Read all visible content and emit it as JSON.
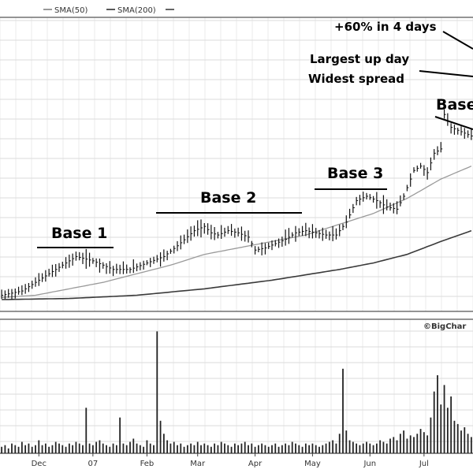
{
  "legend": {
    "items": [
      {
        "label": "SMA(50)",
        "color": "#9a9a9a"
      },
      {
        "label": "SMA(200)",
        "color": "#5a5a5a"
      }
    ]
  },
  "watermark": "©BigChar",
  "colors": {
    "price_bars": "#111111",
    "sma50": "#9a9a9a",
    "sma200": "#3a3a3a",
    "volume_bars": "#222222",
    "grid": "#c8c8c8",
    "annotation": "#000000"
  },
  "chart_data": {
    "type": "line",
    "title": "",
    "x_month_labels": [
      "Dec",
      "07",
      "Feb",
      "Mar",
      "Apr",
      "May",
      "Jun",
      "Jul"
    ],
    "grid": true,
    "price_panel": {
      "ylim": [
        0,
        100
      ],
      "price_path": [
        [
          0,
          2
        ],
        [
          6,
          4
        ],
        [
          10,
          8
        ],
        [
          14,
          12
        ],
        [
          19,
          17
        ],
        [
          22,
          20
        ],
        [
          27,
          18
        ],
        [
          33,
          14
        ],
        [
          38,
          14
        ],
        [
          43,
          17
        ],
        [
          48,
          20
        ],
        [
          52,
          25
        ],
        [
          57,
          32
        ],
        [
          60,
          34
        ],
        [
          62,
          31
        ],
        [
          64,
          30
        ],
        [
          67,
          32
        ],
        [
          70,
          31
        ],
        [
          73,
          29
        ],
        [
          75,
          23
        ],
        [
          78,
          24
        ],
        [
          81,
          26
        ],
        [
          84,
          28
        ],
        [
          87,
          31
        ],
        [
          90,
          32
        ],
        [
          93,
          31
        ],
        [
          96,
          30
        ],
        [
          99,
          30
        ],
        [
          102,
          36
        ],
        [
          105,
          46
        ],
        [
          108,
          48
        ],
        [
          111,
          46
        ],
        [
          114,
          43
        ],
        [
          117,
          42
        ],
        [
          119,
          48
        ],
        [
          122,
          60
        ],
        [
          124,
          62
        ],
        [
          126,
          59
        ],
        [
          128,
          68
        ],
        [
          130,
          70
        ],
        [
          131,
          86
        ],
        [
          133,
          80
        ],
        [
          136,
          78
        ],
        [
          139,
          76
        ]
      ],
      "sma50": [
        [
          0,
          1
        ],
        [
          10,
          2
        ],
        [
          20,
          5
        ],
        [
          30,
          8
        ],
        [
          40,
          12
        ],
        [
          50,
          16
        ],
        [
          60,
          21
        ],
        [
          70,
          24
        ],
        [
          80,
          27
        ],
        [
          90,
          30
        ],
        [
          100,
          35
        ],
        [
          110,
          40
        ],
        [
          120,
          47
        ],
        [
          130,
          56
        ],
        [
          139,
          62
        ]
      ],
      "sma200": [
        [
          0,
          0
        ],
        [
          20,
          0.5
        ],
        [
          40,
          2
        ],
        [
          60,
          5
        ],
        [
          80,
          9
        ],
        [
          100,
          14
        ],
        [
          110,
          17
        ],
        [
          120,
          21
        ],
        [
          130,
          27
        ],
        [
          139,
          32
        ]
      ]
    },
    "volume_panel": {
      "bars": [
        4,
        5,
        3,
        6,
        5,
        4,
        7,
        5,
        6,
        4,
        5,
        8,
        5,
        6,
        4,
        5,
        7,
        6,
        5,
        4,
        6,
        5,
        7,
        6,
        5,
        28,
        6,
        5,
        7,
        8,
        6,
        5,
        4,
        6,
        5,
        22,
        6,
        5,
        7,
        9,
        6,
        5,
        4,
        8,
        6,
        5,
        75,
        20,
        12,
        8,
        6,
        7,
        5,
        6,
        4,
        5,
        6,
        5,
        7,
        5,
        6,
        5,
        4,
        6,
        5,
        7,
        6,
        5,
        4,
        6,
        5,
        6,
        7,
        5,
        6,
        4,
        5,
        6,
        5,
        4,
        5,
        6,
        4,
        5,
        6,
        5,
        7,
        6,
        5,
        4,
        6,
        5,
        6,
        5,
        4,
        5,
        6,
        7,
        8,
        6,
        12,
        52,
        14,
        8,
        7,
        6,
        5,
        6,
        7,
        6,
        5,
        6,
        8,
        7,
        6,
        9,
        10,
        8,
        12,
        14,
        9,
        11,
        10,
        12,
        15,
        13,
        11,
        22,
        38,
        48,
        30,
        42,
        28,
        35,
        20,
        18,
        14,
        16,
        12,
        10
      ]
    },
    "annotations": [
      {
        "id": "base1",
        "text": "Base 1",
        "bar": {
          "from": 10,
          "to": 34
        },
        "level": 31
      },
      {
        "id": "base2",
        "text": "Base 2",
        "bar": {
          "from": 48,
          "to": 92
        },
        "level": 51
      },
      {
        "id": "base3",
        "text": "Base 3",
        "bar": {
          "from": 98,
          "to": 118
        },
        "level": 58
      },
      {
        "id": "base4",
        "text": "Base",
        "bar": {
          "from": 133,
          "to": 139
        },
        "level": 90
      },
      {
        "id": "up60",
        "text": "+60% in 4 days"
      },
      {
        "id": "upday",
        "text": "Largest up day"
      },
      {
        "id": "spread",
        "text": "Widest spread"
      }
    ]
  }
}
